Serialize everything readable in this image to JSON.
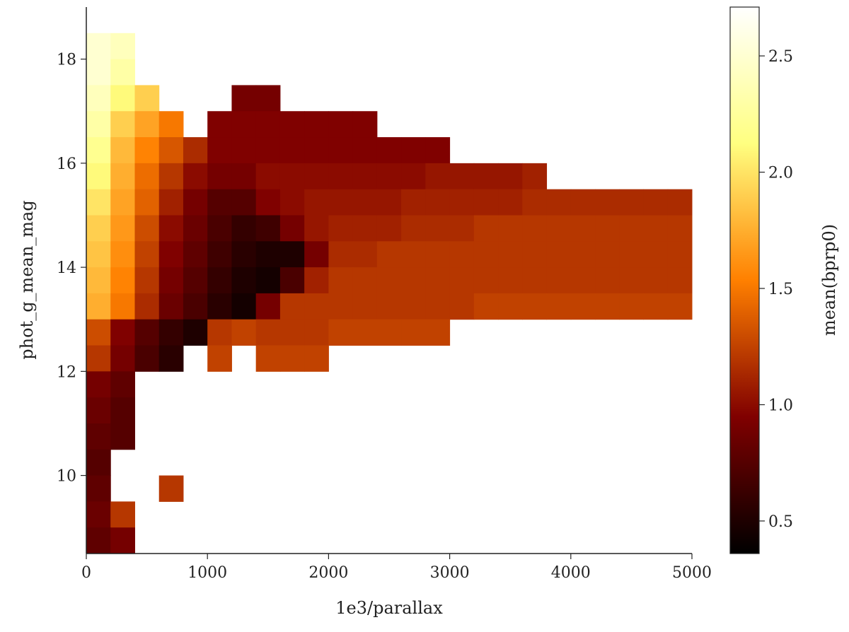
{
  "chart_data": {
    "type": "heatmap",
    "xlabel": "1e3/parallax",
    "ylabel": "phot_g_mean_mag",
    "colorbar_label": "mean(bprp0)",
    "colormap": "afmhot",
    "xlim": [
      0,
      5000
    ],
    "ylim": [
      8.5,
      19.0
    ],
    "clim": [
      0.36,
      2.71
    ],
    "grid": false,
    "xticks": [
      0,
      1000,
      2000,
      3000,
      4000,
      5000
    ],
    "xtick_labels": [
      "0",
      "1000",
      "2000",
      "3000",
      "4000",
      "5000"
    ],
    "yticks": [
      10,
      12,
      14,
      16,
      18
    ],
    "ytick_labels": [
      "10",
      "12",
      "14",
      "16",
      "18"
    ],
    "cticks": [
      0.5,
      1.0,
      1.5,
      2.0,
      2.5
    ],
    "ctick_labels": [
      "0.5",
      "1.0",
      "1.5",
      "2.0",
      "2.5"
    ],
    "x_bin_centers": [
      100,
      300,
      500,
      700,
      900,
      1100,
      1300,
      1500,
      1700,
      1900,
      2100,
      2300,
      2500,
      2700,
      2900,
      3100,
      3300,
      3500,
      3700,
      3900,
      4100,
      4300,
      4500,
      4700,
      4900
    ],
    "y_bin_centers": [
      18.75,
      18.25,
      17.75,
      17.25,
      16.75,
      16.25,
      15.75,
      15.25,
      14.75,
      14.25,
      13.75,
      13.25,
      12.75,
      12.25,
      11.75,
      11.25,
      10.75,
      10.25,
      9.75,
      9.25,
      8.75
    ],
    "values": [
      [
        null,
        null,
        null,
        null,
        null,
        null,
        null,
        null,
        null,
        null,
        null,
        null,
        null,
        null,
        null,
        null,
        null,
        null,
        null,
        null,
        null,
        null,
        null,
        null,
        null
      ],
      [
        2.5,
        2.4,
        null,
        null,
        null,
        null,
        null,
        null,
        null,
        null,
        null,
        null,
        null,
        null,
        null,
        null,
        null,
        null,
        null,
        null,
        null,
        null,
        null,
        null,
        null
      ],
      [
        2.5,
        2.3,
        null,
        null,
        null,
        null,
        null,
        null,
        null,
        null,
        null,
        null,
        null,
        null,
        null,
        null,
        null,
        null,
        null,
        null,
        null,
        null,
        null,
        null,
        null
      ],
      [
        2.4,
        2.1,
        1.9,
        null,
        null,
        null,
        0.9,
        0.9,
        null,
        null,
        null,
        null,
        null,
        null,
        null,
        null,
        null,
        null,
        null,
        null,
        null,
        null,
        null,
        null,
        null
      ],
      [
        2.3,
        1.9,
        1.7,
        1.5,
        null,
        0.95,
        0.95,
        0.95,
        0.95,
        0.95,
        0.95,
        0.95,
        null,
        null,
        null,
        null,
        null,
        null,
        null,
        null,
        null,
        null,
        null,
        null,
        null
      ],
      [
        2.2,
        1.8,
        1.55,
        1.35,
        1.15,
        0.95,
        0.95,
        0.95,
        0.95,
        0.95,
        0.95,
        0.95,
        0.95,
        0.95,
        0.95,
        null,
        null,
        null,
        null,
        null,
        null,
        null,
        null,
        null,
        null
      ],
      [
        2.1,
        1.75,
        1.45,
        1.2,
        1.0,
        0.9,
        0.9,
        1.0,
        1.0,
        1.0,
        1.0,
        1.0,
        1.0,
        1.0,
        1.05,
        1.05,
        1.05,
        1.05,
        1.1,
        null,
        null,
        null,
        null,
        null,
        null
      ],
      [
        2.0,
        1.7,
        1.4,
        1.1,
        0.9,
        0.75,
        0.75,
        0.95,
        1.0,
        1.05,
        1.05,
        1.05,
        1.05,
        1.1,
        1.1,
        1.1,
        1.1,
        1.1,
        1.15,
        1.15,
        1.15,
        1.15,
        1.15,
        1.15,
        1.15
      ],
      [
        1.9,
        1.65,
        1.3,
        1.0,
        0.85,
        0.7,
        0.6,
        0.65,
        0.9,
        1.05,
        1.1,
        1.1,
        1.1,
        1.15,
        1.15,
        1.15,
        1.2,
        1.2,
        1.2,
        1.2,
        1.2,
        1.2,
        1.2,
        1.2,
        1.2
      ],
      [
        1.85,
        1.6,
        1.25,
        0.95,
        0.8,
        0.65,
        0.55,
        0.5,
        0.5,
        0.9,
        1.15,
        1.15,
        1.2,
        1.2,
        1.2,
        1.2,
        1.2,
        1.2,
        1.2,
        1.2,
        1.2,
        1.2,
        1.2,
        1.2,
        1.2
      ],
      [
        1.8,
        1.55,
        1.2,
        0.9,
        0.75,
        0.6,
        0.5,
        0.45,
        0.7,
        1.1,
        1.2,
        1.2,
        1.2,
        1.2,
        1.2,
        1.2,
        1.2,
        1.2,
        1.2,
        1.2,
        1.2,
        1.2,
        1.2,
        1.2,
        1.2
      ],
      [
        1.75,
        1.5,
        1.15,
        0.85,
        0.7,
        0.55,
        0.45,
        0.9,
        1.2,
        1.2,
        1.2,
        1.2,
        1.2,
        1.2,
        1.2,
        1.2,
        1.25,
        1.25,
        1.25,
        1.25,
        1.25,
        1.25,
        1.25,
        1.25,
        1.25
      ],
      [
        1.3,
        0.95,
        0.75,
        0.6,
        0.5,
        1.2,
        1.25,
        1.2,
        1.2,
        1.2,
        1.25,
        1.25,
        1.25,
        1.25,
        1.25,
        null,
        null,
        null,
        null,
        null,
        null,
        null,
        null,
        null,
        null
      ],
      [
        1.2,
        0.9,
        0.7,
        0.55,
        null,
        1.25,
        null,
        1.25,
        1.25,
        1.25,
        null,
        null,
        null,
        null,
        null,
        null,
        null,
        null,
        null,
        null,
        null,
        null,
        null,
        null,
        null
      ],
      [
        0.9,
        0.8,
        null,
        null,
        null,
        null,
        null,
        null,
        null,
        null,
        null,
        null,
        null,
        null,
        null,
        null,
        null,
        null,
        null,
        null,
        null,
        null,
        null,
        null,
        null
      ],
      [
        0.85,
        0.75,
        null,
        null,
        null,
        null,
        null,
        null,
        null,
        null,
        null,
        null,
        null,
        null,
        null,
        null,
        null,
        null,
        null,
        null,
        null,
        null,
        null,
        null,
        null
      ],
      [
        0.8,
        0.75,
        null,
        null,
        null,
        null,
        null,
        null,
        null,
        null,
        null,
        null,
        null,
        null,
        null,
        null,
        null,
        null,
        null,
        null,
        null,
        null,
        null,
        null,
        null
      ],
      [
        0.75,
        null,
        null,
        null,
        null,
        null,
        null,
        null,
        null,
        null,
        null,
        null,
        null,
        null,
        null,
        null,
        null,
        null,
        null,
        null,
        null,
        null,
        null,
        null,
        null
      ],
      [
        0.8,
        null,
        null,
        1.2,
        null,
        null,
        null,
        null,
        null,
        null,
        null,
        null,
        null,
        null,
        null,
        null,
        null,
        null,
        null,
        null,
        null,
        null,
        null,
        null,
        null
      ],
      [
        0.85,
        1.2,
        null,
        null,
        null,
        null,
        null,
        null,
        null,
        null,
        null,
        null,
        null,
        null,
        null,
        null,
        null,
        null,
        null,
        null,
        null,
        null,
        null,
        null,
        null
      ],
      [
        0.8,
        0.9,
        null,
        null,
        null,
        null,
        null,
        null,
        null,
        null,
        null,
        null,
        null,
        null,
        null,
        null,
        null,
        null,
        null,
        null,
        null,
        null,
        null,
        null,
        null
      ]
    ]
  }
}
